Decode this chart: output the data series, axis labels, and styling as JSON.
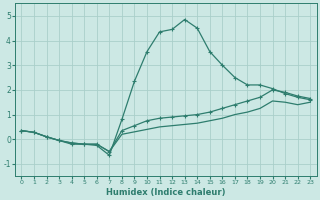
{
  "xlabel": "Humidex (Indice chaleur)",
  "background_color": "#cce8e4",
  "grid_color": "#aacfca",
  "line_color": "#2e7d6e",
  "xlim": [
    -0.5,
    23.5
  ],
  "ylim": [
    -1.5,
    5.5
  ],
  "xticks": [
    0,
    1,
    2,
    3,
    4,
    5,
    6,
    7,
    8,
    9,
    10,
    11,
    12,
    13,
    14,
    15,
    16,
    17,
    18,
    19,
    20,
    21,
    22,
    23
  ],
  "yticks": [
    -1,
    0,
    1,
    2,
    3,
    4,
    5
  ],
  "line_spike_x": [
    0,
    1,
    2,
    3,
    4,
    5,
    6,
    7,
    8,
    9,
    10,
    11,
    12,
    13,
    14,
    15,
    16,
    17,
    18,
    19,
    20,
    21,
    22,
    23
  ],
  "line_spike_y": [
    0.35,
    0.28,
    0.1,
    -0.05,
    -0.2,
    -0.2,
    -0.25,
    -0.65,
    0.8,
    2.35,
    3.55,
    4.35,
    4.45,
    4.85,
    4.5,
    3.55,
    3.0,
    2.5,
    2.2,
    2.2,
    2.05,
    1.85,
    1.7,
    1.6
  ],
  "line_upper_x": [
    0,
    1,
    2,
    3,
    4,
    5,
    6,
    7,
    8,
    9,
    10,
    11,
    12,
    13,
    14,
    15,
    16,
    17,
    18,
    19,
    20,
    21,
    22,
    23
  ],
  "line_upper_y": [
    0.35,
    0.28,
    0.1,
    -0.05,
    -0.15,
    -0.2,
    -0.2,
    -0.5,
    0.35,
    0.55,
    0.75,
    0.85,
    0.9,
    0.95,
    1.0,
    1.1,
    1.25,
    1.4,
    1.55,
    1.7,
    2.0,
    1.9,
    1.75,
    1.65
  ],
  "line_lower_x": [
    0,
    1,
    2,
    3,
    4,
    5,
    6,
    7,
    8,
    9,
    10,
    11,
    12,
    13,
    14,
    15,
    16,
    17,
    18,
    19,
    20,
    21,
    22,
    23
  ],
  "line_lower_y": [
    0.35,
    0.28,
    0.1,
    -0.05,
    -0.15,
    -0.2,
    -0.2,
    -0.5,
    0.2,
    0.3,
    0.4,
    0.5,
    0.55,
    0.6,
    0.65,
    0.75,
    0.85,
    1.0,
    1.1,
    1.25,
    1.55,
    1.5,
    1.4,
    1.5
  ]
}
